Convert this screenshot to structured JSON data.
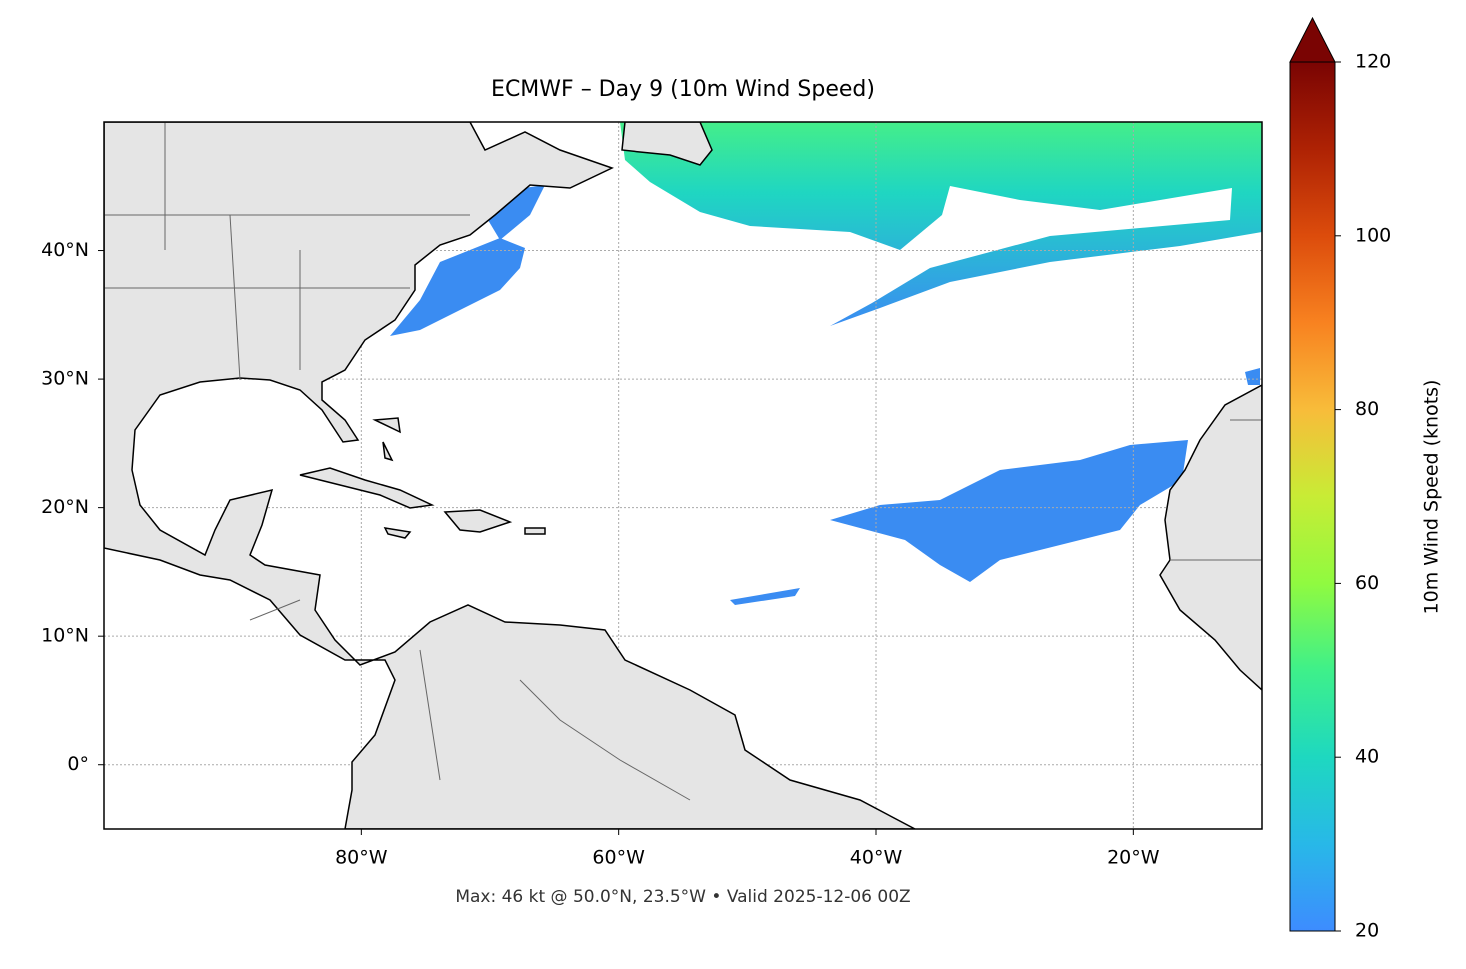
{
  "chart_data": {
    "type": "map",
    "title": "ECMWF – Day 9 (10m Wind Speed)",
    "footnote": "Max: 46 kt @ 50.0°N, 23.5°W • Valid 2025-12-06 00Z",
    "xlim": [
      -100,
      -10
    ],
    "ylim": [
      -5,
      50
    ],
    "xticks": [
      {
        "value": -80,
        "label": "80°W"
      },
      {
        "value": -60,
        "label": "60°W"
      },
      {
        "value": -40,
        "label": "40°W"
      },
      {
        "value": -20,
        "label": "20°W"
      }
    ],
    "yticks": [
      {
        "value": 0,
        "label": "0°"
      },
      {
        "value": 10,
        "label": "10°N"
      },
      {
        "value": 20,
        "label": "20°N"
      },
      {
        "value": 30,
        "label": "30°N"
      },
      {
        "value": 40,
        "label": "40°N"
      }
    ],
    "grid": true,
    "colorbar": {
      "label": "10m Wind Speed (knots)",
      "lim": [
        20,
        120
      ],
      "ticks": [
        20,
        40,
        60,
        80,
        100,
        120
      ],
      "extend": "max"
    }
  }
}
